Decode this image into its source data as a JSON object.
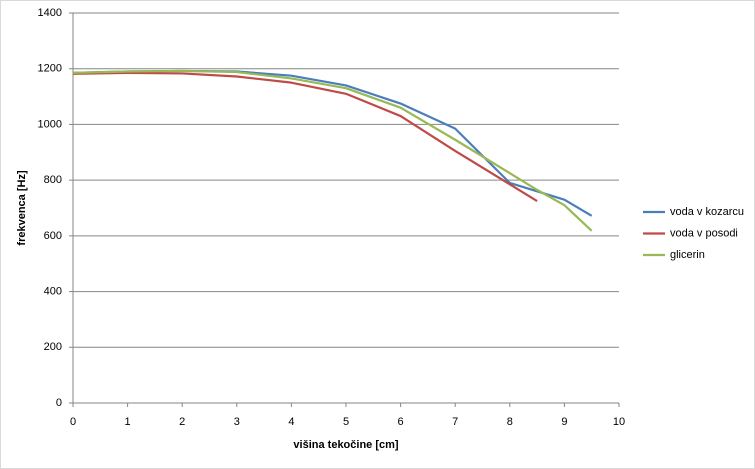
{
  "chart_data": {
    "type": "line",
    "x_label": "višina tekočine [cm]",
    "y_label": "frekvenca [Hz]",
    "x": [
      0,
      1,
      2,
      3,
      4,
      5,
      6,
      7,
      8,
      8.5,
      9,
      9.5
    ],
    "series": [
      {
        "name": "voda v kozarcu",
        "color": "#4a7ebb",
        "values": [
          1185,
          1190,
          1192,
          1190,
          1175,
          1140,
          1075,
          985,
          790,
          760,
          730,
          672
        ]
      },
      {
        "name": "voda v posodi",
        "color": "#be4b48",
        "values": [
          1182,
          1185,
          1183,
          1172,
          1150,
          1110,
          1030,
          905,
          785,
          725,
          null,
          null
        ]
      },
      {
        "name": "glicerin",
        "color": "#98b954",
        "values": [
          1185,
          1190,
          1192,
          1188,
          1165,
          1130,
          1060,
          945,
          825,
          765,
          710,
          618
        ]
      }
    ],
    "xlim": [
      0,
      10
    ],
    "xticks": [
      0,
      1,
      2,
      3,
      4,
      5,
      6,
      7,
      8,
      9,
      10
    ],
    "ylim": [
      0,
      1400
    ],
    "yticks": [
      0,
      200,
      400,
      600,
      800,
      1000,
      1200,
      1400
    ],
    "grid": true,
    "legend": "right"
  }
}
